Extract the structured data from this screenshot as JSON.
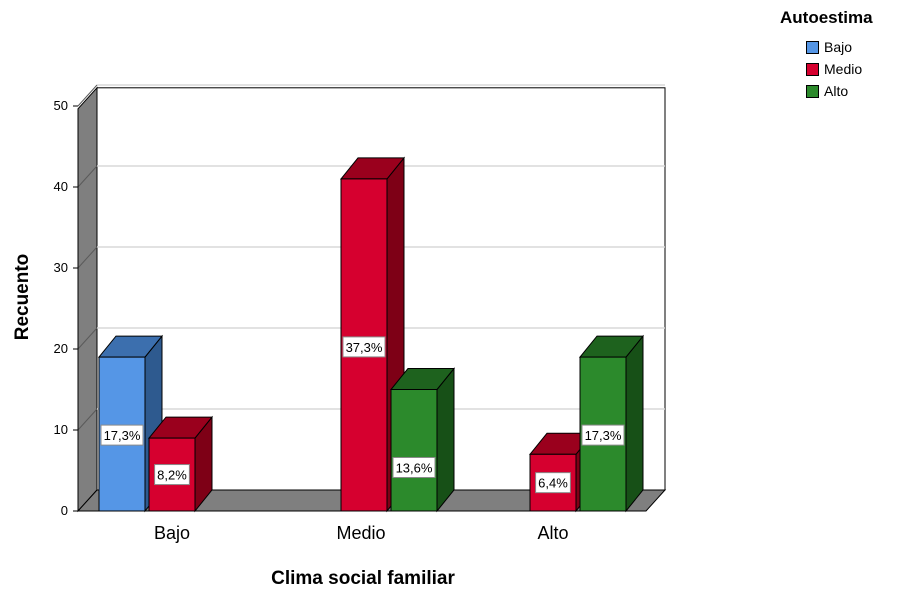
{
  "chart_data": {
    "type": "bar",
    "xlabel": "Clima social familiar",
    "ylabel": "Recuento",
    "categories": [
      "Bajo",
      "Medio",
      "Alto"
    ],
    "ylim": [
      0,
      52
    ],
    "yticks": [
      0,
      10,
      20,
      30,
      40,
      50
    ],
    "grid": true,
    "legend_title": "Autoestima",
    "legend_position": "top-right",
    "series": [
      {
        "name": "Bajo",
        "color": "#5596e6",
        "side_color": "#2e5a8f",
        "top_color": "#3c6fae",
        "values": [
          19,
          0,
          0
        ],
        "labels": [
          "17,3%",
          "",
          ""
        ]
      },
      {
        "name": "Medio",
        "color": "#d6002f",
        "side_color": "#7e0016",
        "top_color": "#9a001d",
        "values": [
          9,
          41,
          7
        ],
        "labels": [
          "8,2%",
          "37,3%",
          "6,4%"
        ]
      },
      {
        "name": "Alto",
        "color": "#2c8a2c",
        "side_color": "#175017",
        "top_color": "#1e621e",
        "values": [
          0,
          15,
          19
        ],
        "labels": [
          "",
          "13,6%",
          "17,3%"
        ]
      }
    ]
  }
}
